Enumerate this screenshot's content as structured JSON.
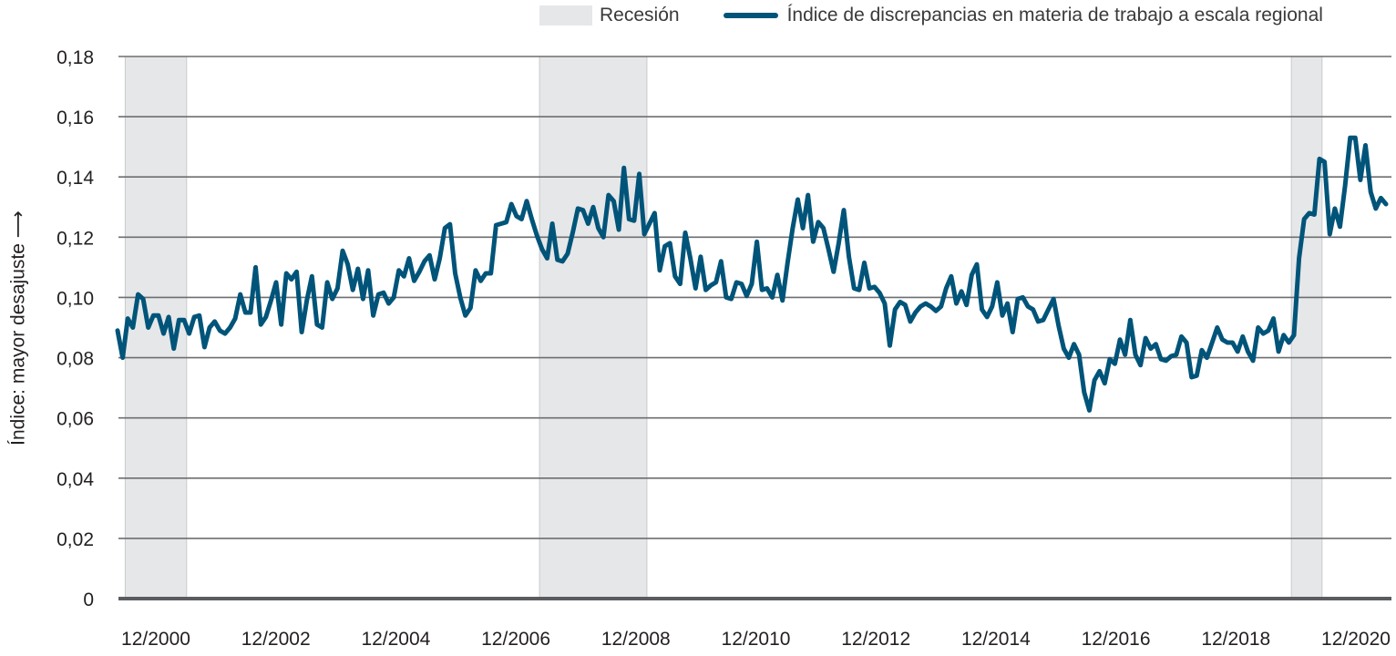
{
  "legend": {
    "recession_label": "Recesión",
    "series_label": "Índice de discrepancias en materia de trabajo a escala regional"
  },
  "colors": {
    "series": "#005479",
    "recession": "#e6e7e9",
    "grid": "#6d6e71",
    "axis": "#5a5c60"
  },
  "chart_data": {
    "type": "line",
    "title": "",
    "xlabel": "",
    "ylabel": "Índice: mayor desajuste ⟶",
    "ylim": [
      0,
      0.18
    ],
    "yticks": [
      0,
      0.02,
      0.04,
      0.06,
      0.08,
      0.1,
      0.12,
      0.14,
      0.16,
      0.18
    ],
    "ytick_labels": [
      "0",
      "0,02",
      "0,04",
      "0,06",
      "0,08",
      "0,10",
      "0,12",
      "0,14",
      "0,16",
      "0,18"
    ],
    "xtick_labels": [
      "12/2000",
      "12/2002",
      "12/2004",
      "12/2006",
      "12/2008",
      "12/2010",
      "12/2012",
      "12/2014",
      "12/2016",
      "12/2018",
      "12/2020"
    ],
    "grid": "horizontal",
    "legend_position": "top-right",
    "recessions": [
      {
        "start": "01/2001",
        "end": "12/2001"
      },
      {
        "start": "10/2007",
        "end": "06/2009"
      },
      {
        "start": "01/2020",
        "end": "06/2020"
      }
    ],
    "x": [
      "11/2000",
      "12/2000",
      "01/2001",
      "02/2001",
      "03/2001",
      "04/2001",
      "05/2001",
      "06/2001",
      "07/2001",
      "08/2001",
      "09/2001",
      "10/2001",
      "11/2001",
      "12/2001",
      "01/2002",
      "02/2002",
      "03/2002",
      "04/2002",
      "05/2002",
      "06/2002",
      "07/2002",
      "08/2002",
      "09/2002",
      "10/2002",
      "11/2002",
      "12/2002",
      "01/2003",
      "02/2003",
      "03/2003",
      "04/2003",
      "05/2003",
      "06/2003",
      "07/2003",
      "08/2003",
      "09/2003",
      "10/2003",
      "11/2003",
      "12/2003",
      "01/2004",
      "02/2004",
      "03/2004",
      "04/2004",
      "05/2004",
      "06/2004",
      "07/2004",
      "08/2004",
      "09/2004",
      "10/2004",
      "11/2004",
      "12/2004",
      "01/2005",
      "02/2005",
      "03/2005",
      "04/2005",
      "05/2005",
      "06/2005",
      "07/2005",
      "08/2005",
      "09/2005",
      "10/2005",
      "11/2005",
      "12/2005",
      "01/2006",
      "02/2006",
      "03/2006",
      "04/2006",
      "05/2006",
      "06/2006",
      "07/2006",
      "08/2006",
      "09/2006",
      "10/2006",
      "11/2006",
      "12/2006",
      "01/2007",
      "02/2007",
      "03/2007",
      "04/2007",
      "05/2007",
      "06/2007",
      "07/2007",
      "08/2007",
      "09/2007",
      "10/2007",
      "11/2007",
      "12/2007",
      "01/2008",
      "02/2008",
      "03/2008",
      "04/2008",
      "05/2008",
      "06/2008",
      "07/2008",
      "08/2008",
      "09/2008",
      "10/2008",
      "11/2008",
      "12/2008",
      "01/2009",
      "02/2009",
      "03/2009",
      "04/2009",
      "05/2009",
      "06/2009",
      "07/2009",
      "08/2009",
      "09/2009",
      "10/2009",
      "11/2009",
      "12/2009",
      "01/2010",
      "02/2010",
      "03/2010",
      "04/2010",
      "05/2010",
      "06/2010",
      "07/2010",
      "08/2010",
      "09/2010",
      "10/2010",
      "11/2010",
      "12/2010",
      "01/2011",
      "02/2011",
      "03/2011",
      "04/2011",
      "05/2011",
      "06/2011",
      "07/2011",
      "08/2011",
      "09/2011",
      "10/2011",
      "11/2011",
      "12/2011",
      "01/2012",
      "02/2012",
      "03/2012",
      "04/2012",
      "05/2012",
      "06/2012",
      "07/2012",
      "08/2012",
      "09/2012",
      "10/2012",
      "11/2012",
      "12/2012",
      "01/2013",
      "02/2013",
      "03/2013",
      "04/2013",
      "05/2013",
      "06/2013",
      "07/2013",
      "08/2013",
      "09/2013",
      "10/2013",
      "11/2013",
      "12/2013",
      "01/2014",
      "02/2014",
      "03/2014",
      "04/2014",
      "05/2014",
      "06/2014",
      "07/2014",
      "08/2014",
      "09/2014",
      "10/2014",
      "11/2014",
      "12/2014",
      "01/2015",
      "02/2015",
      "03/2015",
      "04/2015",
      "05/2015",
      "06/2015",
      "07/2015",
      "08/2015",
      "09/2015",
      "10/2015",
      "11/2015",
      "12/2015",
      "01/2016",
      "02/2016",
      "03/2016",
      "04/2016",
      "05/2016",
      "06/2016",
      "07/2016",
      "08/2016",
      "09/2016",
      "10/2016",
      "11/2016",
      "12/2016",
      "01/2017",
      "02/2017",
      "03/2017",
      "04/2017",
      "05/2017",
      "06/2017",
      "07/2017",
      "08/2017",
      "09/2017",
      "10/2017",
      "11/2017",
      "12/2017",
      "01/2018",
      "02/2018",
      "03/2018",
      "04/2018",
      "05/2018",
      "06/2018",
      "07/2018",
      "08/2018",
      "09/2018",
      "10/2018",
      "11/2018",
      "12/2018",
      "01/2019",
      "02/2019",
      "03/2019",
      "04/2019",
      "05/2019",
      "06/2019",
      "07/2019",
      "08/2019",
      "09/2019",
      "10/2019",
      "11/2019",
      "12/2019",
      "01/2020",
      "02/2020",
      "03/2020",
      "04/2020",
      "05/2020",
      "06/2020",
      "07/2020",
      "08/2020",
      "09/2020",
      "10/2020",
      "11/2020",
      "12/2020",
      "01/2021",
      "02/2021",
      "03/2021",
      "04/2021",
      "05/2021",
      "06/2021",
      "07/2021"
    ],
    "series": [
      {
        "name": "Índice de discrepancias en materia de trabajo a escala regional",
        "values": [
          0.089,
          0.08,
          0.093,
          0.09,
          0.101,
          0.0995,
          0.09,
          0.094,
          0.094,
          0.088,
          0.0935,
          0.083,
          0.0925,
          0.0925,
          0.088,
          0.0935,
          0.094,
          0.0835,
          0.09,
          0.092,
          0.089,
          0.088,
          0.09,
          0.093,
          0.101,
          0.095,
          0.095,
          0.11,
          0.091,
          0.0935,
          0.099,
          0.105,
          0.091,
          0.108,
          0.106,
          0.1085,
          0.0885,
          0.099,
          0.107,
          0.091,
          0.09,
          0.105,
          0.0995,
          0.103,
          0.1155,
          0.111,
          0.1025,
          0.1095,
          0.0995,
          0.109,
          0.094,
          0.101,
          0.1016,
          0.098,
          0.1,
          0.109,
          0.107,
          0.113,
          0.1055,
          0.1085,
          0.112,
          0.114,
          0.106,
          0.113,
          0.123,
          0.1243,
          0.108,
          0.1,
          0.094,
          0.0965,
          0.109,
          0.1055,
          0.108,
          0.108,
          0.124,
          0.1245,
          0.125,
          0.131,
          0.127,
          0.126,
          0.132,
          0.126,
          0.1205,
          0.116,
          0.113,
          0.1245,
          0.1125,
          0.112,
          0.1145,
          0.1215,
          0.1295,
          0.129,
          0.1245,
          0.13,
          0.123,
          0.12,
          0.134,
          0.132,
          0.1225,
          0.143,
          0.126,
          0.1255,
          0.141,
          0.121,
          0.1245,
          0.128,
          0.109,
          0.117,
          0.118,
          0.107,
          0.1045,
          0.1215,
          0.113,
          0.103,
          0.1135,
          0.1025,
          0.104,
          0.105,
          0.112,
          0.1,
          0.0995,
          0.105,
          0.1045,
          0.1005,
          0.1045,
          0.1185,
          0.1025,
          0.103,
          0.1,
          0.1075,
          0.099,
          0.1115,
          0.123,
          0.1325,
          0.123,
          0.134,
          0.1185,
          0.125,
          0.123,
          0.116,
          0.1085,
          0.118,
          0.129,
          0.1135,
          0.103,
          0.1025,
          0.1115,
          0.103,
          0.1035,
          0.1015,
          0.098,
          0.084,
          0.096,
          0.0985,
          0.0975,
          0.092,
          0.095,
          0.097,
          0.098,
          0.097,
          0.0955,
          0.097,
          0.103,
          0.107,
          0.098,
          0.102,
          0.0975,
          0.1075,
          0.111,
          0.096,
          0.0935,
          0.097,
          0.105,
          0.094,
          0.098,
          0.0885,
          0.0995,
          0.1,
          0.097,
          0.096,
          0.092,
          0.0925,
          0.096,
          0.0995,
          0.0905,
          0.083,
          0.08,
          0.0845,
          0.081,
          0.0685,
          0.0625,
          0.0725,
          0.0755,
          0.0715,
          0.0795,
          0.078,
          0.086,
          0.081,
          0.0925,
          0.081,
          0.0775,
          0.0865,
          0.083,
          0.0845,
          0.0795,
          0.079,
          0.0805,
          0.081,
          0.087,
          0.085,
          0.0735,
          0.074,
          0.0825,
          0.08,
          0.085,
          0.09,
          0.086,
          0.085,
          0.085,
          0.082,
          0.087,
          0.082,
          0.079,
          0.09,
          0.088,
          0.089,
          0.093,
          0.082,
          0.0875,
          0.085,
          0.0875,
          0.113,
          0.126,
          0.128,
          0.1275,
          0.146,
          0.145,
          0.121,
          0.1295,
          0.1235,
          0.137,
          0.153,
          0.153,
          0.139,
          0.1505,
          0.135,
          0.1295,
          0.133,
          0.131
        ]
      }
    ]
  }
}
